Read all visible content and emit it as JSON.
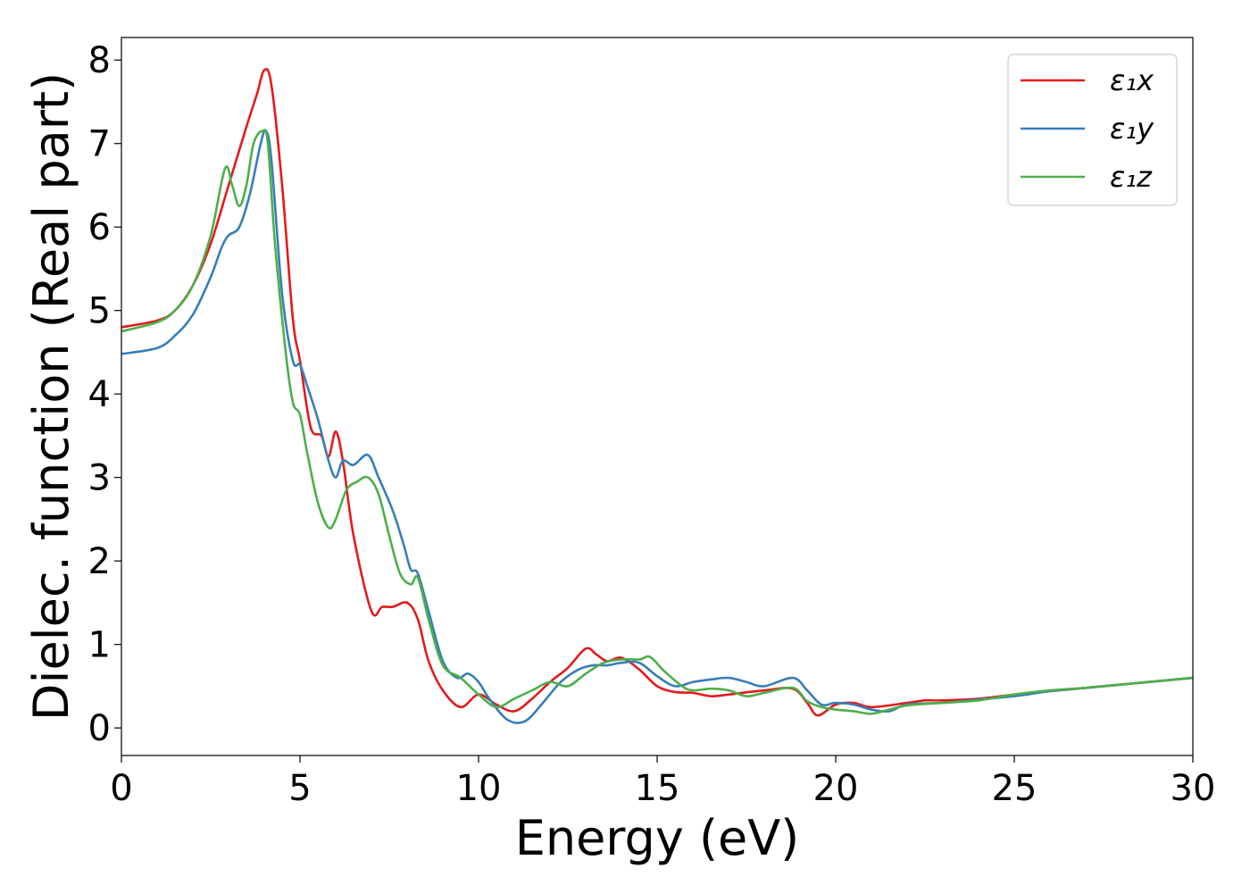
{
  "chart_data": {
    "type": "line",
    "xlabel": "Energy (eV)",
    "ylabel": "Dielec. function (Real part)",
    "xlim": [
      0,
      30
    ],
    "ylim": [
      -0.33,
      8.27
    ],
    "xticks": [
      0,
      5,
      10,
      15,
      20,
      25,
      30
    ],
    "yticks": [
      0,
      1,
      2,
      3,
      4,
      5,
      6,
      7,
      8
    ],
    "grid": false,
    "legend_position": "top-right",
    "legend": [
      "ε₁x",
      "ε₁y",
      "ε₁z"
    ],
    "series": [
      {
        "name": "ε₁x",
        "color": "#e41a1c",
        "x": [
          0,
          1,
          1.5,
          2,
          2.5,
          3,
          3.5,
          3.8,
          4.0,
          4.2,
          4.5,
          4.8,
          5.0,
          5.3,
          5.6,
          5.8,
          6.0,
          6.2,
          6.5,
          7.0,
          7.3,
          7.6,
          8.0,
          8.3,
          8.6,
          9.0,
          9.5,
          10.0,
          10.5,
          11.0,
          11.5,
          12.0,
          12.5,
          13.0,
          13.3,
          13.6,
          14.0,
          14.5,
          15.0,
          15.5,
          16.0,
          16.5,
          17.0,
          18.0,
          18.8,
          19.2,
          19.5,
          20.0,
          20.5,
          21.0,
          22.0,
          22.5,
          23.0,
          24.0,
          25.0,
          26.0,
          27.0,
          28.0,
          29.0,
          30.0
        ],
        "y": [
          4.8,
          4.88,
          5.0,
          5.3,
          5.8,
          6.5,
          7.2,
          7.6,
          7.88,
          7.7,
          6.5,
          4.9,
          4.4,
          3.6,
          3.5,
          3.25,
          3.55,
          3.2,
          2.3,
          1.4,
          1.45,
          1.45,
          1.5,
          1.3,
          0.8,
          0.45,
          0.25,
          0.4,
          0.28,
          0.2,
          0.35,
          0.55,
          0.72,
          0.95,
          0.88,
          0.8,
          0.84,
          0.7,
          0.5,
          0.43,
          0.42,
          0.38,
          0.4,
          0.45,
          0.47,
          0.3,
          0.15,
          0.28,
          0.3,
          0.25,
          0.3,
          0.33,
          0.33,
          0.35,
          0.4,
          0.44,
          0.48,
          0.52,
          0.56,
          0.6
        ]
      },
      {
        "name": "ε₁y",
        "color": "#377eb8",
        "x": [
          0,
          1,
          1.5,
          2,
          2.5,
          2.8,
          3.0,
          3.3,
          3.6,
          3.9,
          4.05,
          4.2,
          4.5,
          4.8,
          5.0,
          5.2,
          5.5,
          5.8,
          6.0,
          6.2,
          6.5,
          6.9,
          7.2,
          7.6,
          7.9,
          8.1,
          8.3,
          8.6,
          9.0,
          9.4,
          9.7,
          10.0,
          10.3,
          10.8,
          11.3,
          11.8,
          12.3,
          12.8,
          13.2,
          13.6,
          14.0,
          14.5,
          15.0,
          15.5,
          16.0,
          16.5,
          17.0,
          17.5,
          18.0,
          18.8,
          19.2,
          19.6,
          20.0,
          20.5,
          21.0,
          21.5,
          22.0,
          23.0,
          24.0,
          25.0,
          26.0,
          27.0,
          28.0,
          29.0,
          30.0
        ],
        "y": [
          4.48,
          4.55,
          4.7,
          4.95,
          5.4,
          5.75,
          5.9,
          6.0,
          6.4,
          7.0,
          7.15,
          6.8,
          5.2,
          4.4,
          4.35,
          4.1,
          3.7,
          3.2,
          3.0,
          3.2,
          3.15,
          3.27,
          3.0,
          2.6,
          2.2,
          1.9,
          1.85,
          1.4,
          0.8,
          0.6,
          0.65,
          0.55,
          0.35,
          0.1,
          0.08,
          0.3,
          0.55,
          0.7,
          0.75,
          0.75,
          0.78,
          0.78,
          0.62,
          0.5,
          0.55,
          0.58,
          0.6,
          0.55,
          0.5,
          0.6,
          0.45,
          0.28,
          0.3,
          0.28,
          0.22,
          0.2,
          0.28,
          0.3,
          0.34,
          0.38,
          0.44,
          0.48,
          0.52,
          0.56,
          0.6
        ]
      },
      {
        "name": "ε₁z",
        "color": "#4daf4a",
        "x": [
          0,
          1,
          1.5,
          2,
          2.5,
          2.9,
          3.1,
          3.3,
          3.5,
          3.7,
          3.95,
          4.1,
          4.3,
          4.6,
          4.8,
          5.0,
          5.2,
          5.5,
          5.8,
          6.0,
          6.3,
          6.6,
          6.9,
          7.2,
          7.5,
          7.8,
          8.1,
          8.3,
          8.6,
          9.0,
          9.5,
          10.0,
          10.5,
          11.0,
          11.5,
          12.0,
          12.5,
          13.0,
          13.5,
          14.0,
          14.5,
          14.8,
          15.2,
          15.7,
          16.0,
          16.5,
          17.0,
          17.5,
          18.0,
          18.8,
          19.2,
          19.6,
          20.0,
          20.5,
          21.0,
          21.5,
          22.0,
          23.0,
          24.0,
          25.0,
          26.0,
          27.0,
          28.0,
          29.0,
          30.0
        ],
        "y": [
          4.75,
          4.86,
          5.0,
          5.3,
          5.9,
          6.7,
          6.5,
          6.25,
          6.5,
          7.0,
          7.15,
          7.0,
          5.8,
          4.5,
          3.9,
          3.75,
          3.3,
          2.7,
          2.4,
          2.5,
          2.85,
          2.95,
          3.0,
          2.8,
          2.3,
          1.85,
          1.72,
          1.8,
          1.3,
          0.75,
          0.6,
          0.4,
          0.25,
          0.35,
          0.45,
          0.55,
          0.5,
          0.65,
          0.78,
          0.82,
          0.82,
          0.85,
          0.68,
          0.5,
          0.45,
          0.47,
          0.45,
          0.38,
          0.42,
          0.48,
          0.32,
          0.25,
          0.22,
          0.2,
          0.17,
          0.22,
          0.27,
          0.3,
          0.33,
          0.4,
          0.45,
          0.48,
          0.52,
          0.56,
          0.6
        ]
      }
    ]
  }
}
